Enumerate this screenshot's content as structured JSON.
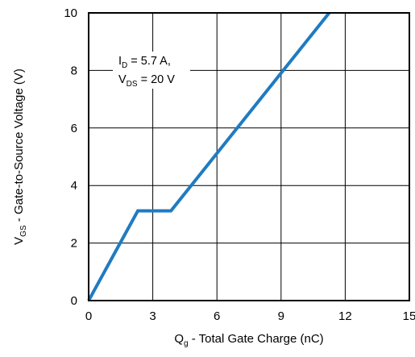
{
  "chart_data": {
    "type": "line",
    "title": "",
    "xlabel": {
      "main": "Q",
      "sub": "g",
      "rest": " - Total Gate Charge (nC)"
    },
    "ylabel": {
      "main": "V",
      "sub": "GS",
      "rest": " - Gate-to-Source Voltage (V)"
    },
    "xlim": [
      0,
      15
    ],
    "ylim": [
      0,
      10
    ],
    "x_ticks": [
      0,
      3,
      6,
      9,
      12,
      15
    ],
    "y_ticks": [
      0,
      2,
      4,
      6,
      8,
      10
    ],
    "grid": true,
    "line_color": "#1f7bc1",
    "series": [
      {
        "x": [
          0,
          2.3,
          3.85,
          11.25
        ],
        "y": [
          0,
          3.12,
          3.12,
          10
        ]
      }
    ],
    "annotations": [
      {
        "main": "I",
        "sub": "D",
        "rest": " = 5.7 A,"
      },
      {
        "main": "V",
        "sub": "DS",
        "rest": " = 20 V"
      }
    ]
  }
}
